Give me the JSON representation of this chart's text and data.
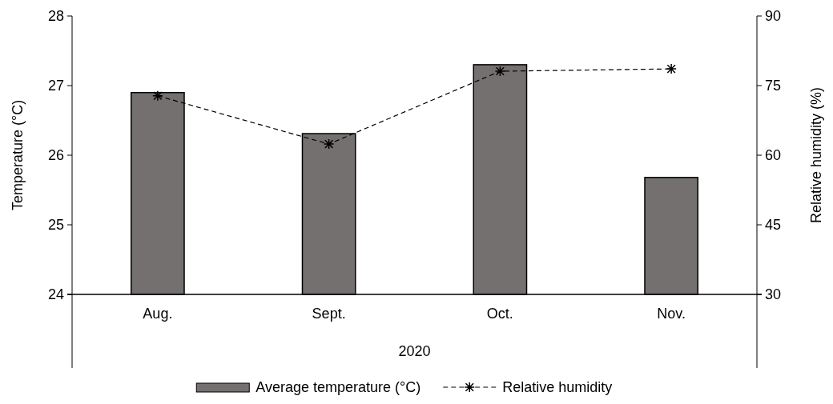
{
  "chart_data": {
    "type": "bar",
    "categories": [
      "Aug.",
      "Sept.",
      "Oct.",
      "Nov."
    ],
    "xlabel": "2020",
    "ylabel": "Temperature (°C)",
    "y2label": "Relative humidity (%)",
    "ylim": [
      24,
      28
    ],
    "yticks": [
      24,
      25,
      26,
      27,
      28
    ],
    "y2lim": [
      30,
      90
    ],
    "y2ticks": [
      30,
      45,
      60,
      75,
      90
    ],
    "legend": "bottom",
    "grid": false,
    "series": [
      {
        "name": "Average temperature (°C)",
        "color": "#747070",
        "values": [
          26.9,
          26.31,
          27.3,
          25.68
        ]
      },
      {
        "name": "Relative humidity",
        "type": "line",
        "axis": "y2",
        "color": "#000000",
        "marker": "cross",
        "line_style": "dashed",
        "values": [
          72.8,
          62.4,
          78.1,
          78.6
        ]
      }
    ]
  }
}
